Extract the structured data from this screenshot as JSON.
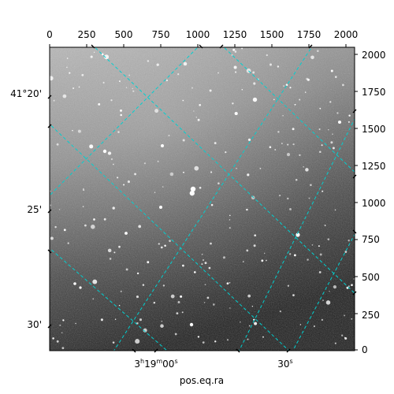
{
  "figure": {
    "axis_title_bottom": "pos.eq.ra",
    "top_ticks": [
      "0",
      "250",
      "500",
      "750",
      "1000",
      "1250",
      "1500",
      "1750",
      "2000"
    ],
    "right_ticks": [
      "0",
      "250",
      "500",
      "750",
      "1000",
      "1250",
      "1500",
      "1750",
      "2000"
    ],
    "left_ticks": [
      "41°20'",
      "25'",
      "30'"
    ],
    "bottom_ticks": {
      "first": {
        "main": "3",
        "h": "h",
        "mid": "19",
        "m": "m",
        "last": "00",
        "s": "s"
      },
      "second": {
        "main": "30",
        "s": "s"
      }
    },
    "grid_color": "#00d0d0"
  }
}
